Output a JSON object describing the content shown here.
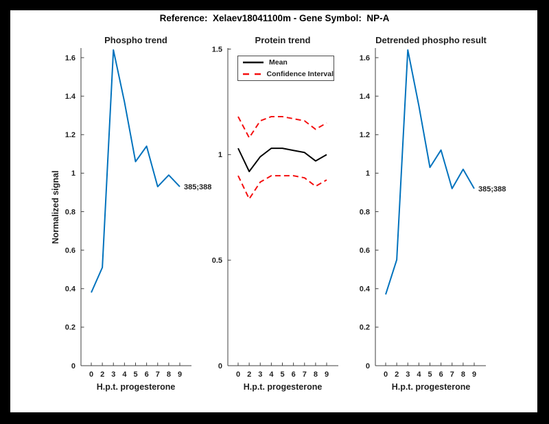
{
  "figure_title": "Reference:  Xelaev18041100m - Gene Symbol:  NP-A",
  "colors": {
    "frame": "#000000",
    "figure_bg": "#ffffff",
    "axis": "#3f3f3f",
    "text": "#1f1f1f",
    "blue": "#0072BD",
    "mean": "#000000",
    "ci": "#F40F0F"
  },
  "chart_data": [
    {
      "type": "line",
      "title": "Phospho trend",
      "xlabel": "H.p.t. progesterone",
      "ylabel": "Normalized signal",
      "x_ticklabels": [
        "0",
        "2",
        "3",
        "4",
        "5",
        "6",
        "7",
        "8",
        "9"
      ],
      "y_ticks": [
        0,
        0.2,
        0.4,
        0.6,
        0.8,
        1,
        1.2,
        1.4,
        1.6
      ],
      "ylim": [
        0,
        1.65
      ],
      "grid": false,
      "series": [
        {
          "key": "phospho",
          "name": "Phospho signal",
          "color": "#0072BD",
          "style": "solid",
          "values": [
            0.38,
            0.51,
            1.64,
            1.37,
            1.06,
            1.14,
            0.93,
            0.99,
            0.93
          ]
        }
      ],
      "annotation": {
        "text": "385;388",
        "at_index": 8
      }
    },
    {
      "type": "line",
      "title": "Protein trend",
      "xlabel": "H.p.t. progesterone",
      "ylabel": "",
      "x_ticklabels": [
        "0",
        "2",
        "3",
        "4",
        "5",
        "6",
        "7",
        "8",
        "9"
      ],
      "y_ticks": [
        0,
        0.5,
        1,
        1.5
      ],
      "ylim": [
        0,
        1.505
      ],
      "grid": false,
      "legend_position": "top-left-inside",
      "series": [
        {
          "key": "mean",
          "name": "Mean",
          "legend_label": "Mean",
          "color": "#000000",
          "style": "solid",
          "values": [
            1.03,
            0.92,
            0.99,
            1.03,
            1.03,
            1.02,
            1.01,
            0.97,
            1.0
          ]
        },
        {
          "key": "ci-upper",
          "name": "Confidence Interval upper",
          "legend_label": "Confidence Interval",
          "color": "#F40F0F",
          "style": "dashed",
          "values": [
            1.18,
            1.08,
            1.16,
            1.18,
            1.18,
            1.17,
            1.16,
            1.12,
            1.15
          ]
        },
        {
          "key": "ci-lower",
          "name": "Confidence Interval lower",
          "color": "#F40F0F",
          "style": "dashed",
          "values": [
            0.9,
            0.79,
            0.87,
            0.9,
            0.9,
            0.9,
            0.89,
            0.85,
            0.88
          ]
        }
      ]
    },
    {
      "type": "line",
      "title": "Detrended phospho result",
      "xlabel": "H.p.t. progesterone",
      "ylabel": "",
      "x_ticklabels": [
        "0",
        "2",
        "3",
        "4",
        "5",
        "6",
        "7",
        "8",
        "9"
      ],
      "y_ticks": [
        0,
        0.2,
        0.4,
        0.6,
        0.8,
        1,
        1.2,
        1.4,
        1.6
      ],
      "ylim": [
        0,
        1.65
      ],
      "grid": false,
      "series": [
        {
          "key": "detrended",
          "name": "Detrended phospho signal",
          "color": "#0072BD",
          "style": "solid",
          "values": [
            0.37,
            0.55,
            1.64,
            1.35,
            1.03,
            1.12,
            0.92,
            1.02,
            0.92
          ]
        }
      ],
      "annotation": {
        "text": "385;388",
        "at_index": 8
      }
    }
  ]
}
